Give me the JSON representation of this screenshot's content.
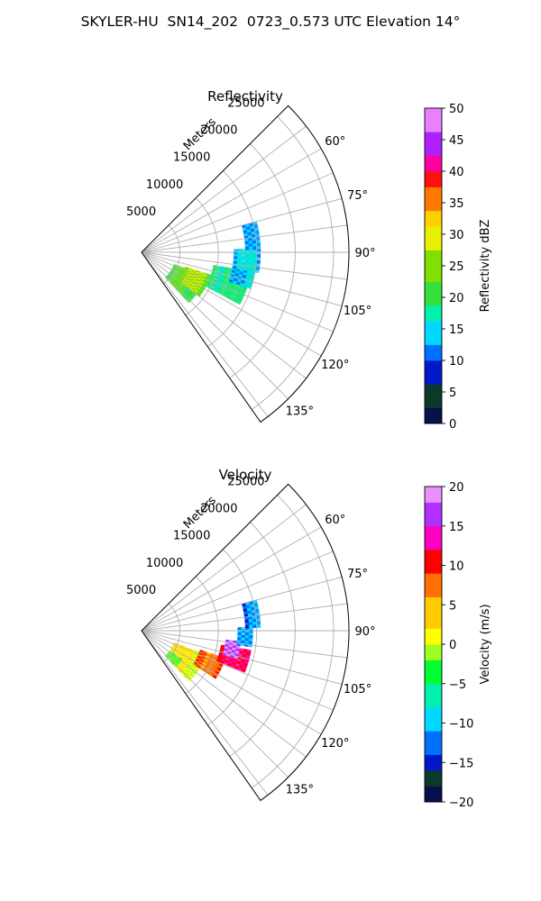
{
  "figure": {
    "title": "SKYLER-HU  SN14_202  0723_0.573 UTC Elevation 14°"
  },
  "chart_data": [
    {
      "type": "polar-sector",
      "title": "Reflectivity",
      "range_label": "Meters",
      "range_ticks": [
        5000,
        10000,
        15000,
        20000,
        25000
      ],
      "range_max": 27000,
      "azimuth_ticks": [
        "60°",
        "75°",
        "90°",
        "105°",
        "120°",
        "135°"
      ],
      "azimuth_range_deg": [
        45,
        145
      ],
      "colorbar": {
        "label": "Reflectivity dBZ",
        "min": 0,
        "max": 50,
        "ticks": [
          "0",
          "5",
          "10",
          "15",
          "20",
          "25",
          "30",
          "35",
          "40",
          "45",
          "50"
        ]
      },
      "echo_regions": [
        {
          "az_range": [
            110,
            137
          ],
          "range_range": [
            4500,
            9000
          ],
          "value": 21
        },
        {
          "az_range": [
            108,
            127
          ],
          "range_range": [
            6000,
            9500
          ],
          "value": 25
        },
        {
          "az_range": [
            100,
            118
          ],
          "range_range": [
            9500,
            14500
          ],
          "value": 18
        },
        {
          "az_range": [
            98,
            108
          ],
          "range_range": [
            12000,
            15000
          ],
          "value": 14
        },
        {
          "az_range": [
            88,
            100
          ],
          "range_range": [
            12000,
            15500
          ],
          "value": 14
        },
        {
          "az_range": [
            75,
            88
          ],
          "range_range": [
            13500,
            15500
          ],
          "value": 13
        }
      ]
    },
    {
      "type": "polar-sector",
      "title": "Velocity",
      "range_label": "Meters",
      "range_ticks": [
        5000,
        10000,
        15000,
        20000,
        25000
      ],
      "range_max": 27000,
      "azimuth_ticks": [
        "60°",
        "75°",
        "90°",
        "105°",
        "120°",
        "135°"
      ],
      "azimuth_range_deg": [
        45,
        145
      ],
      "colorbar": {
        "label": "Velocity (m/s)",
        "min": -20,
        "max": 20,
        "ticks": [
          "−20",
          "−15",
          "−10",
          "−5",
          "0",
          "5",
          "10",
          "15",
          "20"
        ]
      },
      "echo_regions": [
        {
          "az_range": [
            110,
            137
          ],
          "range_range": [
            4500,
            9000
          ],
          "value": 1
        },
        {
          "az_range": [
            125,
            137
          ],
          "range_range": [
            4500,
            6500
          ],
          "value": -3
        },
        {
          "az_range": [
            108,
            122
          ],
          "range_range": [
            8000,
            11500
          ],
          "value": 7
        },
        {
          "az_range": [
            100,
            112
          ],
          "range_range": [
            10500,
            14500
          ],
          "value": 11
        },
        {
          "az_range": [
            96,
            106
          ],
          "range_range": [
            11000,
            13000
          ],
          "value": 16
        },
        {
          "az_range": [
            88,
            98
          ],
          "range_range": [
            12500,
            14500
          ],
          "value": -12
        },
        {
          "az_range": [
            75,
            88
          ],
          "range_range": [
            13500,
            15500
          ],
          "value": -12
        }
      ]
    }
  ]
}
